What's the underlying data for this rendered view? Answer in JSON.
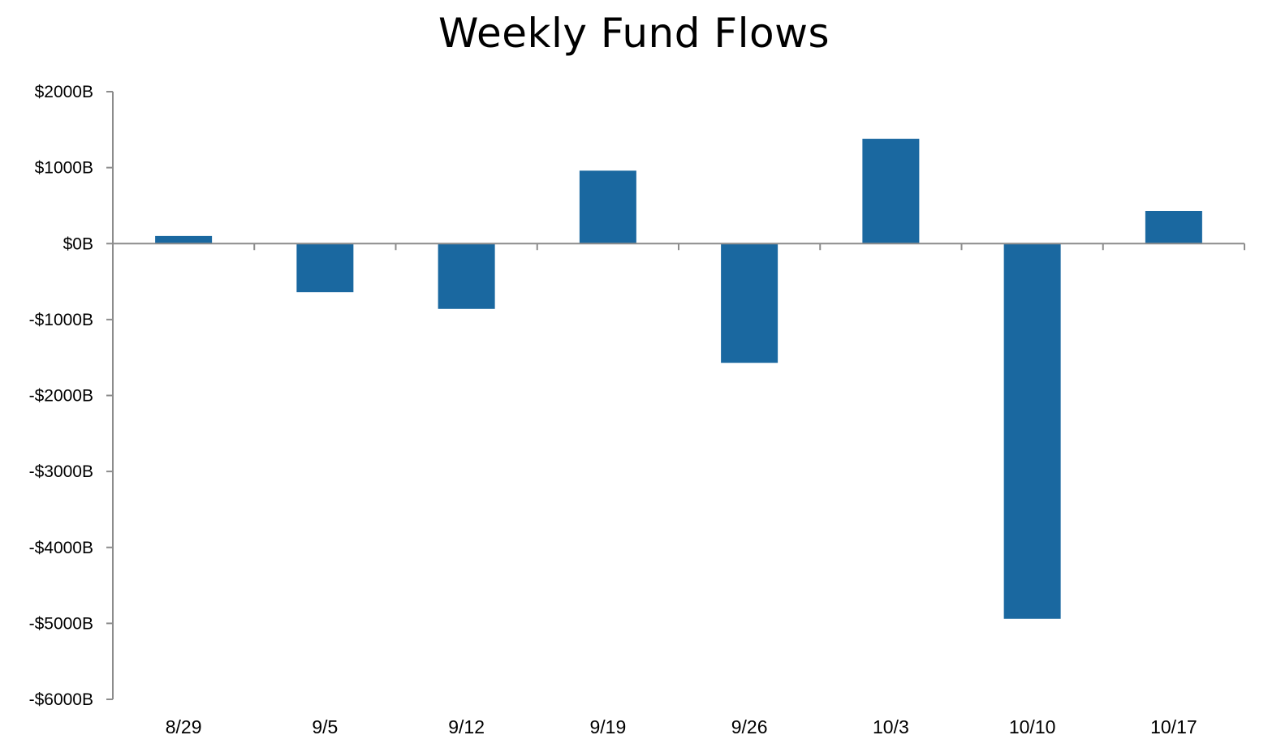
{
  "chart_data": {
    "type": "bar",
    "title": "Weekly Fund Flows",
    "xlabel": "",
    "ylabel": "",
    "categories": [
      "8/29",
      "9/5",
      "9/12",
      "9/19",
      "9/26",
      "10/3",
      "10/10",
      "10/17"
    ],
    "values": [
      100,
      -640,
      -860,
      960,
      -1570,
      1380,
      -4940,
      430
    ],
    "ylim": [
      -6000,
      2000
    ],
    "yticks": [
      2000,
      1000,
      0,
      -1000,
      -2000,
      -3000,
      -4000,
      -5000,
      -6000
    ],
    "ytick_labels": [
      "$2000B",
      "$1000B",
      "$0B",
      "-$1000B",
      "-$2000B",
      "-$3000B",
      "-$4000B",
      "-$5000B",
      "-$6000B"
    ],
    "grid": false,
    "legend": "none",
    "bar_color": "#1a68a0",
    "axis_color": "#8c8c8c"
  }
}
